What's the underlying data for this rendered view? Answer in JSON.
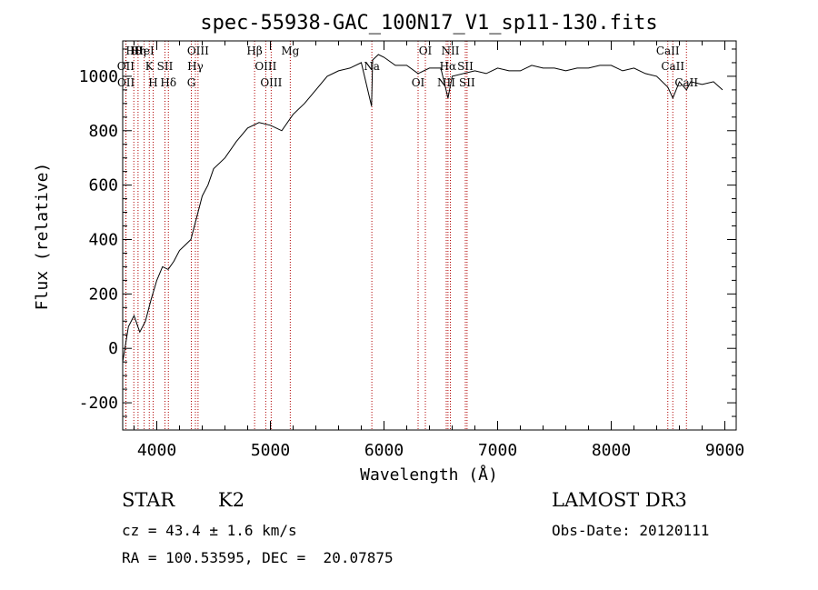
{
  "chart_data": {
    "type": "line",
    "title": "spec-55938-GAC_100N17_V1_sp11-130.fits",
    "xlabel": "Wavelength (Å)",
    "ylabel": "Flux (relative)",
    "xlim": [
      3700,
      9100
    ],
    "ylim": [
      -300,
      1130
    ],
    "xticks": [
      4000,
      5000,
      6000,
      7000,
      8000,
      9000
    ],
    "yticks": [
      -200,
      0,
      200,
      400,
      600,
      800,
      1000
    ],
    "series": [
      {
        "name": "flux",
        "x": [
          3700,
          3750,
          3800,
          3850,
          3900,
          3950,
          4000,
          4050,
          4100,
          4150,
          4200,
          4250,
          4300,
          4350,
          4400,
          4450,
          4500,
          4600,
          4700,
          4800,
          4900,
          5000,
          5100,
          5200,
          5300,
          5400,
          5500,
          5600,
          5700,
          5800,
          5890,
          5900,
          5950,
          6000,
          6100,
          6200,
          6300,
          6400,
          6500,
          6563,
          6600,
          6700,
          6800,
          6900,
          7000,
          7100,
          7200,
          7300,
          7400,
          7500,
          7600,
          7700,
          7800,
          7900,
          8000,
          8100,
          8200,
          8300,
          8400,
          8498,
          8542,
          8600,
          8662,
          8700,
          8800,
          8900,
          8980
        ],
        "y": [
          -50,
          80,
          120,
          60,
          100,
          180,
          250,
          300,
          290,
          320,
          360,
          380,
          400,
          480,
          560,
          600,
          660,
          700,
          760,
          810,
          830,
          820,
          800,
          860,
          900,
          950,
          1000,
          1020,
          1030,
          1050,
          890,
          1060,
          1080,
          1070,
          1040,
          1040,
          1010,
          1030,
          1030,
          920,
          1000,
          1010,
          1020,
          1010,
          1030,
          1020,
          1020,
          1040,
          1030,
          1030,
          1020,
          1030,
          1030,
          1040,
          1040,
          1020,
          1030,
          1010,
          1000,
          960,
          920,
          980,
          950,
          980,
          970,
          980,
          950
        ]
      }
    ],
    "lines": [
      {
        "label": "Hθ",
        "wavelength": 3798
      },
      {
        "label": "OII",
        "wavelength": 3727
      },
      {
        "label": "OII",
        "wavelength": 3729
      },
      {
        "label": "Hη",
        "wavelength": 3835
      },
      {
        "label": "K",
        "wavelength": 3934
      },
      {
        "label": "H",
        "wavelength": 3968
      },
      {
        "label": "HeI",
        "wavelength": 3889
      },
      {
        "label": "SII",
        "wavelength": 4072
      },
      {
        "label": "Hδ",
        "wavelength": 4102
      },
      {
        "label": "OIII",
        "wavelength": 4363
      },
      {
        "label": "Hγ",
        "wavelength": 4340
      },
      {
        "label": "G",
        "wavelength": 4304
      },
      {
        "label": "Hβ",
        "wavelength": 4861
      },
      {
        "label": "OIII",
        "wavelength": 4959
      },
      {
        "label": "OIII",
        "wavelength": 5007
      },
      {
        "label": "Mg",
        "wavelength": 5175
      },
      {
        "label": "Na",
        "wavelength": 5893
      },
      {
        "label": "OI",
        "wavelength": 6300
      },
      {
        "label": "OI",
        "wavelength": 6364
      },
      {
        "label": "Hα",
        "wavelength": 6563
      },
      {
        "label": "NII",
        "wavelength": 6548
      },
      {
        "label": "NII",
        "wavelength": 6584
      },
      {
        "label": "SII",
        "wavelength": 6716
      },
      {
        "label": "SII",
        "wavelength": 6731
      },
      {
        "label": "CaII",
        "wavelength": 8498
      },
      {
        "label": "CaII",
        "wavelength": 8542
      },
      {
        "label": "CaII",
        "wavelength": 8662
      }
    ]
  },
  "info": {
    "class": "STAR",
    "subclass": "K2",
    "survey": "LAMOST DR3",
    "redshift": "cz = 43.4 ± 1.6 km/s",
    "obs_date": "Obs-Date: 20120111",
    "coords": "RA = 100.53595, DEC =  20.07875"
  },
  "colors": {
    "axis": "#000000",
    "spectrum": "#000000",
    "line_marker": "#b00000"
  }
}
